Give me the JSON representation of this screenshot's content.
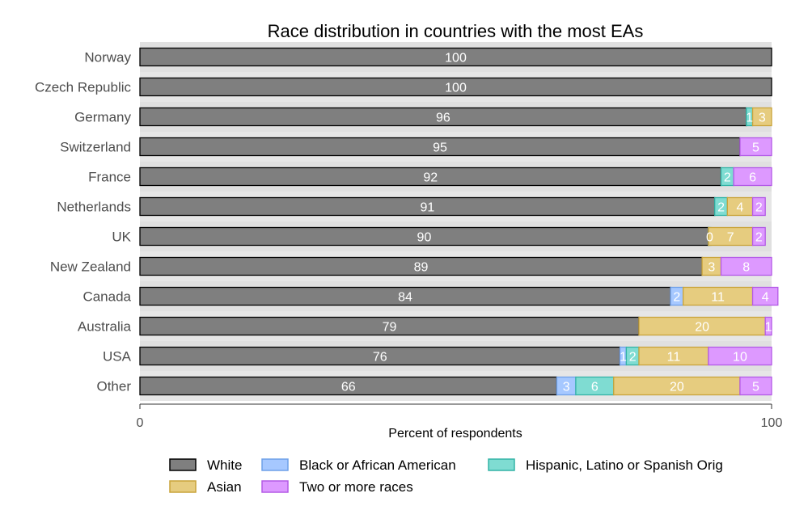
{
  "chart_data": {
    "type": "bar",
    "orientation": "horizontal",
    "stacked": true,
    "title": "Race distribution in countries with the most EAs",
    "xlabel": "Percent of respondents",
    "ylabel": "",
    "xlim": [
      0,
      100
    ],
    "x_ticks": [
      0,
      100
    ],
    "grid": "horizontal bands",
    "legend_position": "bottom",
    "categories": [
      "Norway",
      "Czech Republic",
      "Germany",
      "Switzerland",
      "France",
      "Netherlands",
      "UK",
      "New Zealand",
      "Canada",
      "Australia",
      "USA",
      "Other"
    ],
    "series": [
      {
        "name": "White",
        "color": "#7f7f7f",
        "border": "#000000",
        "values": [
          100,
          100,
          96,
          95,
          92,
          91,
          90,
          89,
          84,
          79,
          76,
          66
        ]
      },
      {
        "name": "Black or African American",
        "color": "#a6c8ff",
        "border": "#6fa0e8",
        "values": [
          0,
          0,
          0,
          0,
          0,
          0,
          0,
          0,
          2,
          0,
          1,
          3
        ]
      },
      {
        "name": "Hispanic, Latino or Spanish Orig",
        "color": "#7fdcd2",
        "border": "#33b3a6",
        "values": [
          0,
          0,
          1,
          0,
          2,
          2,
          0,
          0,
          0,
          0,
          2,
          6
        ]
      },
      {
        "name": "Asian",
        "color": "#e6cc7f",
        "border": "#c9a33a",
        "values": [
          0,
          0,
          3,
          0,
          0,
          4,
          7,
          3,
          11,
          20,
          11,
          20
        ]
      },
      {
        "name": "Two or more races",
        "color": "#dd99ff",
        "border": "#b35ae6",
        "values": [
          0,
          0,
          0,
          5,
          6,
          2,
          2,
          8,
          4,
          1,
          10,
          5
        ]
      }
    ],
    "data_labels": [
      [
        "100"
      ],
      [
        "100"
      ],
      [
        "96",
        "1",
        "3"
      ],
      [
        "95",
        "5"
      ],
      [
        "92",
        "2",
        "6"
      ],
      [
        "91",
        "2",
        "4",
        "2"
      ],
      [
        "90",
        "0",
        "7",
        "2"
      ],
      [
        "89",
        "3",
        "8"
      ],
      [
        "84",
        "2",
        "11",
        "4"
      ],
      [
        "79",
        "20",
        "1"
      ],
      [
        "76",
        "1",
        "2",
        "11",
        "10"
      ],
      [
        "66",
        "3",
        "6",
        "20",
        "5"
      ]
    ],
    "legend_order": [
      "White",
      "Black or African American",
      "Hispanic, Latino or Spanish Orig",
      "Asian",
      "Two or more races"
    ]
  }
}
